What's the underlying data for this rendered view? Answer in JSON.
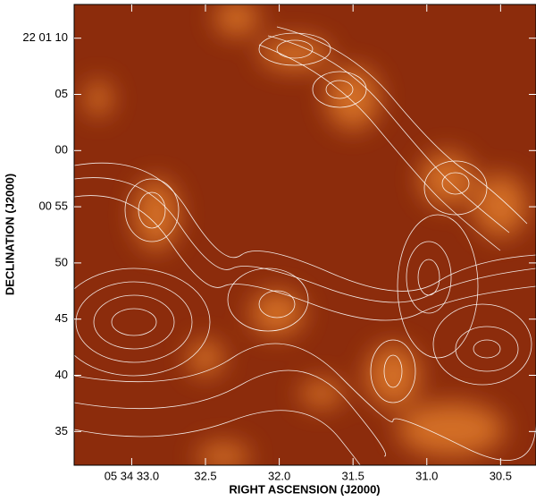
{
  "chart_data": {
    "type": "image",
    "x_label": "RIGHT ASCENSION (J2000)",
    "y_label": "DECLINATION (J2000)",
    "xlim": [
      33.39,
      30.26
    ],
    "xticks": [
      {
        "value": 33.0,
        "label": "05 34 33.0"
      },
      32.5,
      {
        "value": 32.0,
        "label": "32.0"
      },
      31.5,
      {
        "value": 31.0,
        "label": "31.0"
      },
      30.5
    ],
    "ylim": [
      32,
      73
    ],
    "yticks": [
      {
        "value": 70,
        "label": "22 01 10"
      },
      {
        "value": 65,
        "label": "05"
      },
      {
        "value": 60,
        "label": "00"
      },
      {
        "value": 55,
        "label": "00 55"
      },
      50,
      45,
      40,
      35
    ]
  }
}
